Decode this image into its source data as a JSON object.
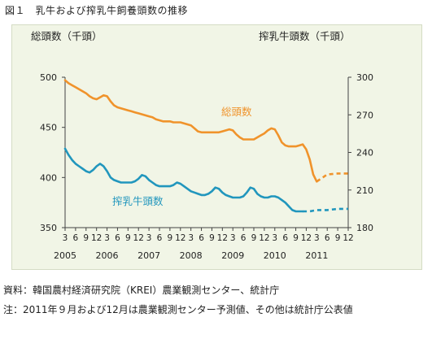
{
  "figure_title": "図１　乳牛および搾乳牛飼養頭数の推移",
  "source_note": "資料：韓国農村経済研究院（KREI）農業観測センター、統計庁",
  "footnote": "注：2011年９月および12月は農業観測センター予測値、その他は統計庁公表値",
  "colors": {
    "total": "#f0932b",
    "milking": "#2196bd",
    "panel": "#f1f5e6"
  },
  "chart_data": {
    "type": "line",
    "left_axis": {
      "title": "総頭数（千頭）",
      "ylim": [
        350,
        500
      ],
      "ticks": [
        350,
        400,
        450,
        500
      ]
    },
    "right_axis": {
      "title": "搾乳牛頭数（千頭）",
      "ylim": [
        180,
        300
      ],
      "ticks": [
        180,
        210,
        240,
        270,
        300
      ]
    },
    "x_tick_labels": [
      "3",
      "6",
      "9",
      "12",
      "3",
      "6",
      "9",
      "12",
      "3",
      "6",
      "9",
      "12",
      "3",
      "6",
      "9",
      "12",
      "3",
      "6",
      "9",
      "12",
      "3",
      "6",
      "9",
      "12",
      "3",
      "6",
      "9",
      "12"
    ],
    "year_labels": [
      "2005",
      "2006",
      "2007",
      "2008",
      "2009",
      "2010",
      "2011"
    ],
    "series": [
      {
        "name": "総頭数",
        "axis": "left",
        "points": [
          {
            "x": "2005-03",
            "y": 497
          },
          {
            "x": "2005-04",
            "y": 494
          },
          {
            "x": "2005-05",
            "y": 492
          },
          {
            "x": "2005-06",
            "y": 490
          },
          {
            "x": "2005-07",
            "y": 488
          },
          {
            "x": "2005-08",
            "y": 486
          },
          {
            "x": "2005-09",
            "y": 484
          },
          {
            "x": "2005-10",
            "y": 481
          },
          {
            "x": "2005-11",
            "y": 479
          },
          {
            "x": "2005-12",
            "y": 478
          },
          {
            "x": "2006-01",
            "y": 480
          },
          {
            "x": "2006-02",
            "y": 482
          },
          {
            "x": "2006-03",
            "y": 481
          },
          {
            "x": "2006-04",
            "y": 476
          },
          {
            "x": "2006-05",
            "y": 472
          },
          {
            "x": "2006-06",
            "y": 470
          },
          {
            "x": "2006-07",
            "y": 469
          },
          {
            "x": "2006-08",
            "y": 468
          },
          {
            "x": "2006-09",
            "y": 467
          },
          {
            "x": "2006-10",
            "y": 466
          },
          {
            "x": "2006-11",
            "y": 465
          },
          {
            "x": "2006-12",
            "y": 464
          },
          {
            "x": "2007-01",
            "y": 463
          },
          {
            "x": "2007-02",
            "y": 462
          },
          {
            "x": "2007-03",
            "y": 461
          },
          {
            "x": "2007-04",
            "y": 460
          },
          {
            "x": "2007-05",
            "y": 458
          },
          {
            "x": "2007-06",
            "y": 457
          },
          {
            "x": "2007-07",
            "y": 456
          },
          {
            "x": "2007-08",
            "y": 456
          },
          {
            "x": "2007-09",
            "y": 456
          },
          {
            "x": "2007-10",
            "y": 455
          },
          {
            "x": "2007-11",
            "y": 455
          },
          {
            "x": "2007-12",
            "y": 455
          },
          {
            "x": "2008-01",
            "y": 454
          },
          {
            "x": "2008-02",
            "y": 453
          },
          {
            "x": "2008-03",
            "y": 452
          },
          {
            "x": "2008-04",
            "y": 449
          },
          {
            "x": "2008-05",
            "y": 446
          },
          {
            "x": "2008-06",
            "y": 445
          },
          {
            "x": "2008-07",
            "y": 445
          },
          {
            "x": "2008-08",
            "y": 445
          },
          {
            "x": "2008-09",
            "y": 445
          },
          {
            "x": "2008-10",
            "y": 445
          },
          {
            "x": "2008-11",
            "y": 445
          },
          {
            "x": "2008-12",
            "y": 446
          },
          {
            "x": "2009-01",
            "y": 447
          },
          {
            "x": "2009-02",
            "y": 448
          },
          {
            "x": "2009-03",
            "y": 447
          },
          {
            "x": "2009-04",
            "y": 443
          },
          {
            "x": "2009-05",
            "y": 440
          },
          {
            "x": "2009-06",
            "y": 438
          },
          {
            "x": "2009-07",
            "y": 438
          },
          {
            "x": "2009-08",
            "y": 438
          },
          {
            "x": "2009-09",
            "y": 438
          },
          {
            "x": "2009-10",
            "y": 440
          },
          {
            "x": "2009-11",
            "y": 442
          },
          {
            "x": "2009-12",
            "y": 444
          },
          {
            "x": "2010-01",
            "y": 447
          },
          {
            "x": "2010-02",
            "y": 449
          },
          {
            "x": "2010-03",
            "y": 448
          },
          {
            "x": "2010-04",
            "y": 442
          },
          {
            "x": "2010-05",
            "y": 435
          },
          {
            "x": "2010-06",
            "y": 432
          },
          {
            "x": "2010-07",
            "y": 431
          },
          {
            "x": "2010-08",
            "y": 431
          },
          {
            "x": "2010-09",
            "y": 431
          },
          {
            "x": "2010-10",
            "y": 432
          },
          {
            "x": "2010-11",
            "y": 433
          },
          {
            "x": "2010-12",
            "y": 428
          },
          {
            "x": "2011-01",
            "y": 418
          },
          {
            "x": "2011-02",
            "y": 403
          },
          {
            "x": "2011-03",
            "y": 396
          }
        ],
        "projection": [
          {
            "x": "2011-06",
            "y": 403
          },
          {
            "x": "2011-09",
            "y": 404
          },
          {
            "x": "2011-12",
            "y": 404
          }
        ]
      },
      {
        "name": "搾乳牛頭数",
        "axis": "right",
        "points": [
          {
            "x": "2005-03",
            "y": 243
          },
          {
            "x": "2005-04",
            "y": 238
          },
          {
            "x": "2005-05",
            "y": 234
          },
          {
            "x": "2005-06",
            "y": 231
          },
          {
            "x": "2005-07",
            "y": 229
          },
          {
            "x": "2005-08",
            "y": 227
          },
          {
            "x": "2005-09",
            "y": 225
          },
          {
            "x": "2005-10",
            "y": 224
          },
          {
            "x": "2005-11",
            "y": 226
          },
          {
            "x": "2005-12",
            "y": 229
          },
          {
            "x": "2006-01",
            "y": 231
          },
          {
            "x": "2006-02",
            "y": 229
          },
          {
            "x": "2006-03",
            "y": 225
          },
          {
            "x": "2006-04",
            "y": 220
          },
          {
            "x": "2006-05",
            "y": 218
          },
          {
            "x": "2006-06",
            "y": 217
          },
          {
            "x": "2006-07",
            "y": 216
          },
          {
            "x": "2006-08",
            "y": 216
          },
          {
            "x": "2006-09",
            "y": 216
          },
          {
            "x": "2006-10",
            "y": 216
          },
          {
            "x": "2006-11",
            "y": 217
          },
          {
            "x": "2006-12",
            "y": 219
          },
          {
            "x": "2007-01",
            "y": 222
          },
          {
            "x": "2007-02",
            "y": 221
          },
          {
            "x": "2007-03",
            "y": 218
          },
          {
            "x": "2007-04",
            "y": 216
          },
          {
            "x": "2007-05",
            "y": 214
          },
          {
            "x": "2007-06",
            "y": 213
          },
          {
            "x": "2007-07",
            "y": 213
          },
          {
            "x": "2007-08",
            "y": 213
          },
          {
            "x": "2007-09",
            "y": 213
          },
          {
            "x": "2007-10",
            "y": 214
          },
          {
            "x": "2007-11",
            "y": 216
          },
          {
            "x": "2007-12",
            "y": 215
          },
          {
            "x": "2008-01",
            "y": 213
          },
          {
            "x": "2008-02",
            "y": 211
          },
          {
            "x": "2008-03",
            "y": 209
          },
          {
            "x": "2008-04",
            "y": 208
          },
          {
            "x": "2008-05",
            "y": 207
          },
          {
            "x": "2008-06",
            "y": 206
          },
          {
            "x": "2008-07",
            "y": 206
          },
          {
            "x": "2008-08",
            "y": 207
          },
          {
            "x": "2008-09",
            "y": 209
          },
          {
            "x": "2008-10",
            "y": 212
          },
          {
            "x": "2008-11",
            "y": 211
          },
          {
            "x": "2008-12",
            "y": 208
          },
          {
            "x": "2009-01",
            "y": 206
          },
          {
            "x": "2009-02",
            "y": 205
          },
          {
            "x": "2009-03",
            "y": 204
          },
          {
            "x": "2009-04",
            "y": 204
          },
          {
            "x": "2009-05",
            "y": 204
          },
          {
            "x": "2009-06",
            "y": 205
          },
          {
            "x": "2009-07",
            "y": 208
          },
          {
            "x": "2009-08",
            "y": 212
          },
          {
            "x": "2009-09",
            "y": 211
          },
          {
            "x": "2009-10",
            "y": 207
          },
          {
            "x": "2009-11",
            "y": 205
          },
          {
            "x": "2009-12",
            "y": 204
          },
          {
            "x": "2010-01",
            "y": 204
          },
          {
            "x": "2010-02",
            "y": 205
          },
          {
            "x": "2010-03",
            "y": 205
          },
          {
            "x": "2010-04",
            "y": 204
          },
          {
            "x": "2010-05",
            "y": 202
          },
          {
            "x": "2010-06",
            "y": 200
          },
          {
            "x": "2010-07",
            "y": 197
          },
          {
            "x": "2010-08",
            "y": 194
          },
          {
            "x": "2010-09",
            "y": 193
          },
          {
            "x": "2010-10",
            "y": 193
          },
          {
            "x": "2010-11",
            "y": 193
          }
        ],
        "projection": [
          {
            "x": "2011-01",
            "y": 193
          },
          {
            "x": "2011-03",
            "y": 194
          },
          {
            "x": "2011-06",
            "y": 194
          },
          {
            "x": "2011-09",
            "y": 195
          },
          {
            "x": "2011-12",
            "y": 195
          }
        ]
      }
    ]
  }
}
